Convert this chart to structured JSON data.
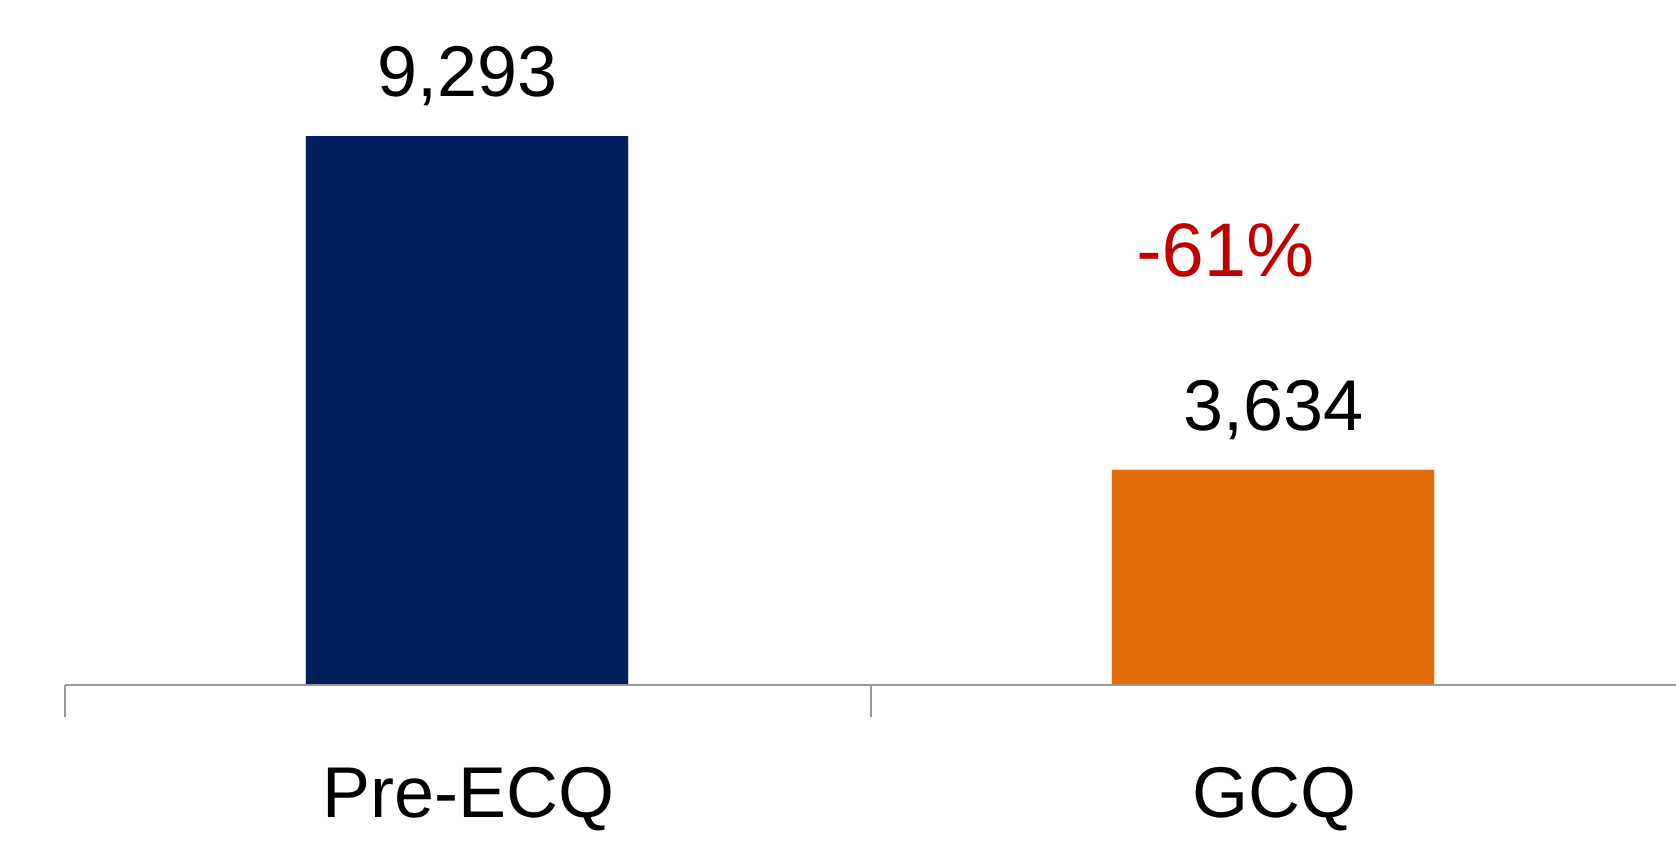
{
  "chart_data": {
    "type": "bar",
    "categories": [
      "Pre-ECQ",
      "GCQ"
    ],
    "values": [
      9293,
      3634
    ],
    "colors": [
      "#001f5c",
      "#e36c0a"
    ],
    "value_labels": [
      "9,293",
      "3,634"
    ],
    "annotations": [
      "-61%"
    ],
    "grid": false,
    "legend": false
  }
}
